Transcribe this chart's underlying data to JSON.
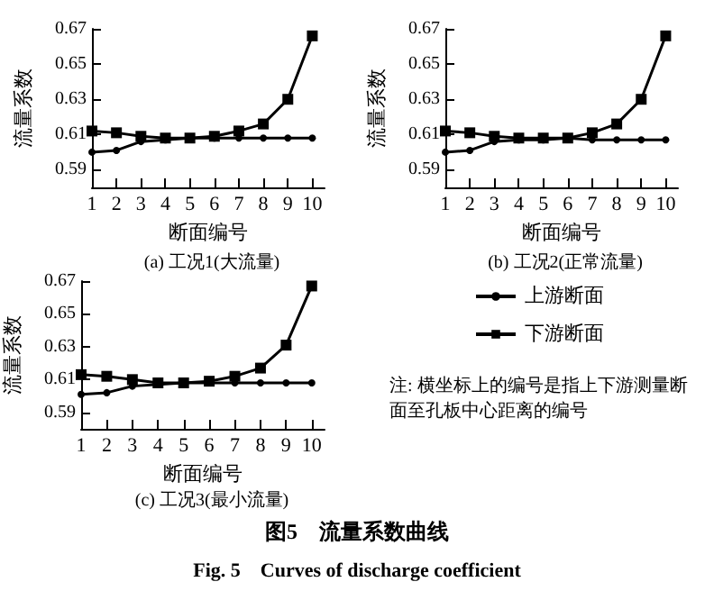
{
  "chart_data": [
    {
      "type": "line",
      "subtitle": "(a) 工况1(大流量)",
      "xlabel": "断面编号",
      "ylabel": "流量系数",
      "x": [
        1,
        2,
        3,
        4,
        5,
        6,
        7,
        8,
        9,
        10
      ],
      "xlim": [
        1,
        10.5
      ],
      "xticks": [
        1,
        2,
        3,
        4,
        5,
        6,
        7,
        8,
        9,
        10
      ],
      "ylim": [
        0.58,
        0.67
      ],
      "yticks": [
        0.59,
        0.61,
        0.63,
        0.65,
        0.67
      ],
      "grid": false,
      "legend": false,
      "series": [
        {
          "color": "#000000",
          "marker": "circle",
          "values": [
            0.6,
            0.601,
            0.606,
            0.607,
            0.608,
            0.608,
            0.608,
            0.608,
            0.608,
            0.608
          ]
        },
        {
          "color": "#000000",
          "marker": "square",
          "values": [
            0.612,
            0.611,
            0.609,
            0.608,
            0.608,
            0.609,
            0.612,
            0.616,
            0.63,
            0.666
          ]
        }
      ]
    },
    {
      "type": "line",
      "subtitle": "(b) 工况2(正常流量)",
      "xlabel": "断面编号",
      "ylabel": "流量系数",
      "x": [
        1,
        2,
        3,
        4,
        5,
        6,
        7,
        8,
        9,
        10
      ],
      "xlim": [
        1,
        10.5
      ],
      "xticks": [
        1,
        2,
        3,
        4,
        5,
        6,
        7,
        8,
        9,
        10
      ],
      "ylim": [
        0.58,
        0.67
      ],
      "yticks": [
        0.59,
        0.61,
        0.63,
        0.65,
        0.67
      ],
      "grid": false,
      "legend": false,
      "series": [
        {
          "color": "#000000",
          "marker": "circle",
          "values": [
            0.6,
            0.601,
            0.606,
            0.607,
            0.607,
            0.608,
            0.607,
            0.607,
            0.607,
            0.607
          ]
        },
        {
          "color": "#000000",
          "marker": "square",
          "values": [
            0.612,
            0.611,
            0.609,
            0.608,
            0.608,
            0.608,
            0.611,
            0.616,
            0.63,
            0.666
          ]
        }
      ]
    },
    {
      "type": "line",
      "subtitle": "(c) 工况3(最小流量)",
      "xlabel": "断面编号",
      "ylabel": "流量系数",
      "x": [
        1,
        2,
        3,
        4,
        5,
        6,
        7,
        8,
        9,
        10
      ],
      "xlim": [
        1,
        10.5
      ],
      "xticks": [
        1,
        2,
        3,
        4,
        5,
        6,
        7,
        8,
        9,
        10
      ],
      "ylim": [
        0.58,
        0.67
      ],
      "yticks": [
        0.59,
        0.61,
        0.63,
        0.65,
        0.67
      ],
      "grid": false,
      "legend": "right",
      "series": [
        {
          "name": "上游断面",
          "color": "#000000",
          "marker": "circle",
          "values": [
            0.601,
            0.602,
            0.606,
            0.607,
            0.608,
            0.608,
            0.608,
            0.608,
            0.608,
            0.608
          ]
        },
        {
          "name": "下游断面",
          "color": "#000000",
          "marker": "square",
          "values": [
            0.613,
            0.612,
            0.61,
            0.608,
            0.608,
            0.609,
            0.612,
            0.617,
            0.631,
            0.667
          ]
        }
      ]
    },
    {
      "type": "other",
      "title": "图5　流量系数曲线",
      "subtitle": "Fig. 5　Curves of discharge coefficient",
      "annotations": [
        "注: 横坐标上的编号是指上下游测量断面至孔板中心距离的编号"
      ]
    }
  ]
}
